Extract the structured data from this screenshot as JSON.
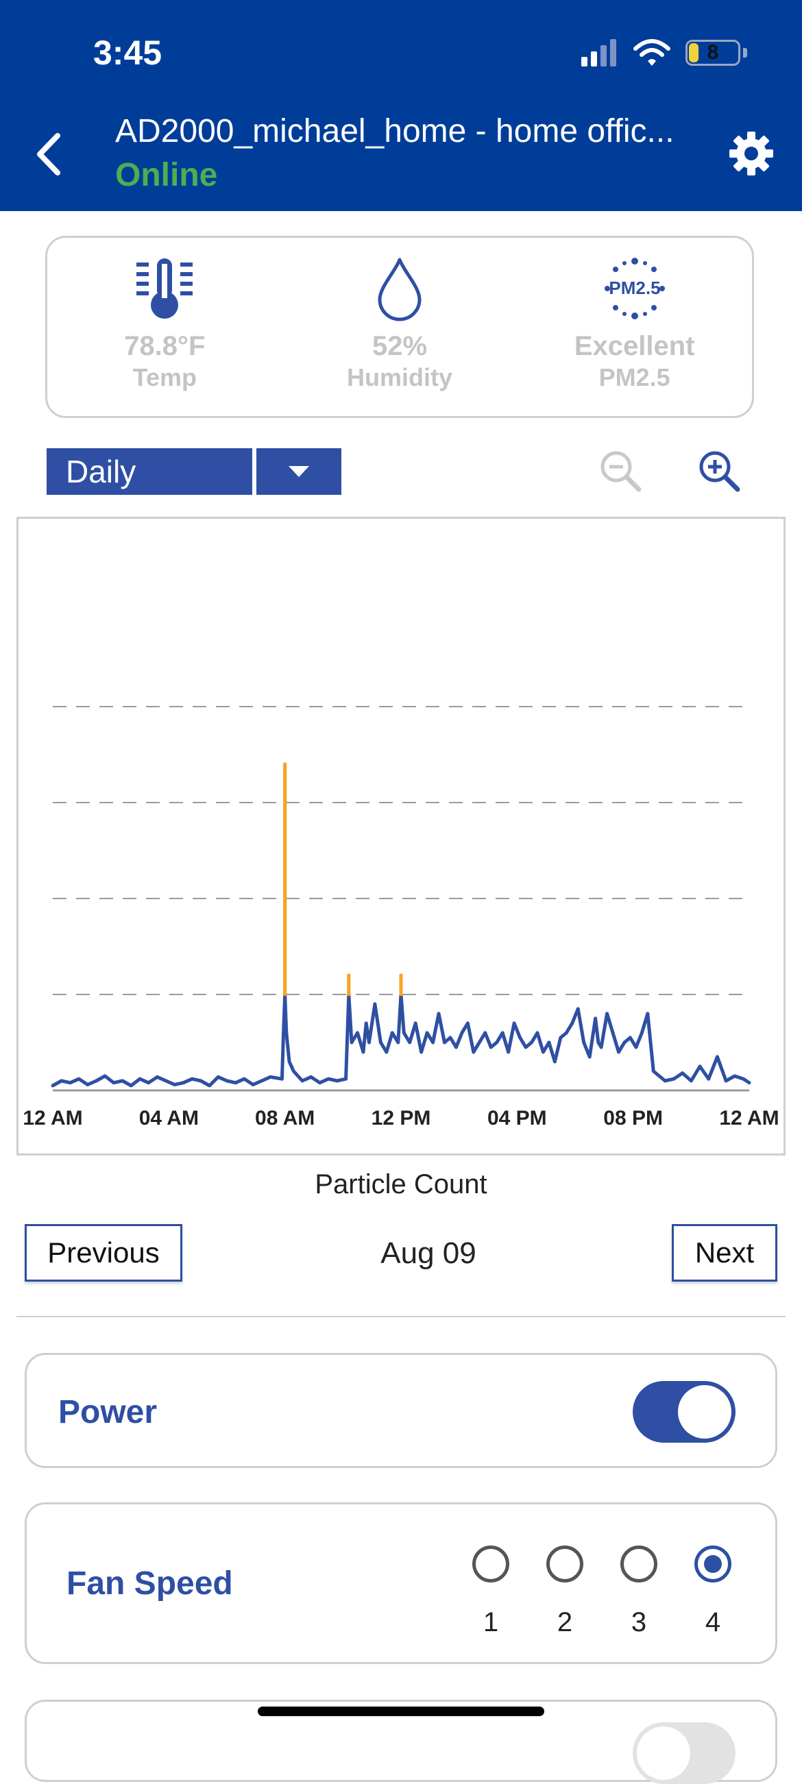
{
  "status_bar": {
    "time": "3:45",
    "battery": "8"
  },
  "header": {
    "title": "AD2000_michael_home - home offic...",
    "status": "Online"
  },
  "sensors": [
    {
      "value": "78.8°F",
      "label": "Temp",
      "icon": "thermometer-icon"
    },
    {
      "value": "52%",
      "label": "Humidity",
      "icon": "droplet-icon"
    },
    {
      "value": "Excellent",
      "label": "PM2.5",
      "icon": "pm25-icon",
      "icon_text": "PM2.5"
    }
  ],
  "range": {
    "selected": "Daily"
  },
  "chart_data": {
    "type": "line",
    "title": "Particle Count",
    "x_ticks": [
      "12 AM",
      "04 AM",
      "08 AM",
      "12 PM",
      "04 PM",
      "08 PM",
      "12 AM"
    ],
    "x_range_hours": [
      0,
      24
    ],
    "y_range": [
      0,
      5
    ],
    "grid": "dashed-horizontal",
    "threshold_colors": {
      "low": "#2e4fa3",
      "moderate": "#f5a623",
      "high": "#e53935"
    },
    "thresholds": [
      1,
      4
    ],
    "series": [
      {
        "x": [
          0,
          0.3,
          0.6,
          0.9,
          1.2,
          1.5,
          1.8,
          2.1,
          2.4,
          2.7,
          3.0,
          3.3,
          3.6,
          3.9,
          4.2,
          4.5,
          4.8,
          5.1,
          5.4,
          5.7,
          6.0,
          6.3,
          6.6,
          6.9,
          7.2,
          7.5,
          7.9,
          7.95,
          8.0,
          8.05,
          8.15,
          8.3,
          8.6,
          8.9,
          9.2,
          9.5,
          9.8,
          10.1,
          10.2,
          10.3,
          10.5,
          10.7,
          10.8,
          10.9,
          11.1,
          11.3,
          11.5,
          11.7,
          11.9,
          12.0,
          12.1,
          12.3,
          12.5,
          12.7,
          12.9,
          13.1,
          13.3,
          13.5,
          13.7,
          13.9,
          14.1,
          14.3,
          14.5,
          14.7,
          14.9,
          15.1,
          15.3,
          15.5,
          15.7,
          15.9,
          16.1,
          16.3,
          16.5,
          16.7,
          16.9,
          17.1,
          17.3,
          17.5,
          17.7,
          17.9,
          18.1,
          18.3,
          18.5,
          18.7,
          18.8,
          18.9,
          19.1,
          19.3,
          19.5,
          19.7,
          19.9,
          20.1,
          20.3,
          20.5,
          20.7,
          20.9,
          21.1,
          21.4,
          21.7,
          22.0,
          22.3,
          22.6,
          22.9,
          23.2,
          23.5,
          23.8,
          24.0
        ],
        "y": [
          0.05,
          0.1,
          0.08,
          0.12,
          0.06,
          0.1,
          0.15,
          0.08,
          0.1,
          0.05,
          0.12,
          0.08,
          0.14,
          0.1,
          0.06,
          0.08,
          0.12,
          0.1,
          0.05,
          0.14,
          0.1,
          0.08,
          0.12,
          0.06,
          0.1,
          0.14,
          0.12,
          0.6,
          3.4,
          0.6,
          0.3,
          0.2,
          0.1,
          0.14,
          0.08,
          0.12,
          0.1,
          0.12,
          1.2,
          0.5,
          0.6,
          0.4,
          0.7,
          0.5,
          0.9,
          0.5,
          0.4,
          0.6,
          0.5,
          1.2,
          0.6,
          0.5,
          0.7,
          0.4,
          0.6,
          0.5,
          0.8,
          0.5,
          0.55,
          0.45,
          0.6,
          0.7,
          0.4,
          0.5,
          0.6,
          0.45,
          0.5,
          0.6,
          0.4,
          0.7,
          0.55,
          0.45,
          0.5,
          0.6,
          0.4,
          0.5,
          0.3,
          0.55,
          0.6,
          0.7,
          0.85,
          0.5,
          0.35,
          0.75,
          0.5,
          0.45,
          0.8,
          0.6,
          0.4,
          0.5,
          0.55,
          0.45,
          0.6,
          0.8,
          0.2,
          0.15,
          0.1,
          0.12,
          0.18,
          0.1,
          0.25,
          0.12,
          0.35,
          0.1,
          0.15,
          0.12,
          0.08
        ]
      }
    ]
  },
  "navigation": {
    "previous": "Previous",
    "next": "Next",
    "date": "Aug 09"
  },
  "power": {
    "label": "Power",
    "on": true
  },
  "fan_speed": {
    "label": "Fan Speed",
    "options": [
      "1",
      "2",
      "3",
      "4"
    ],
    "selected": "4"
  }
}
